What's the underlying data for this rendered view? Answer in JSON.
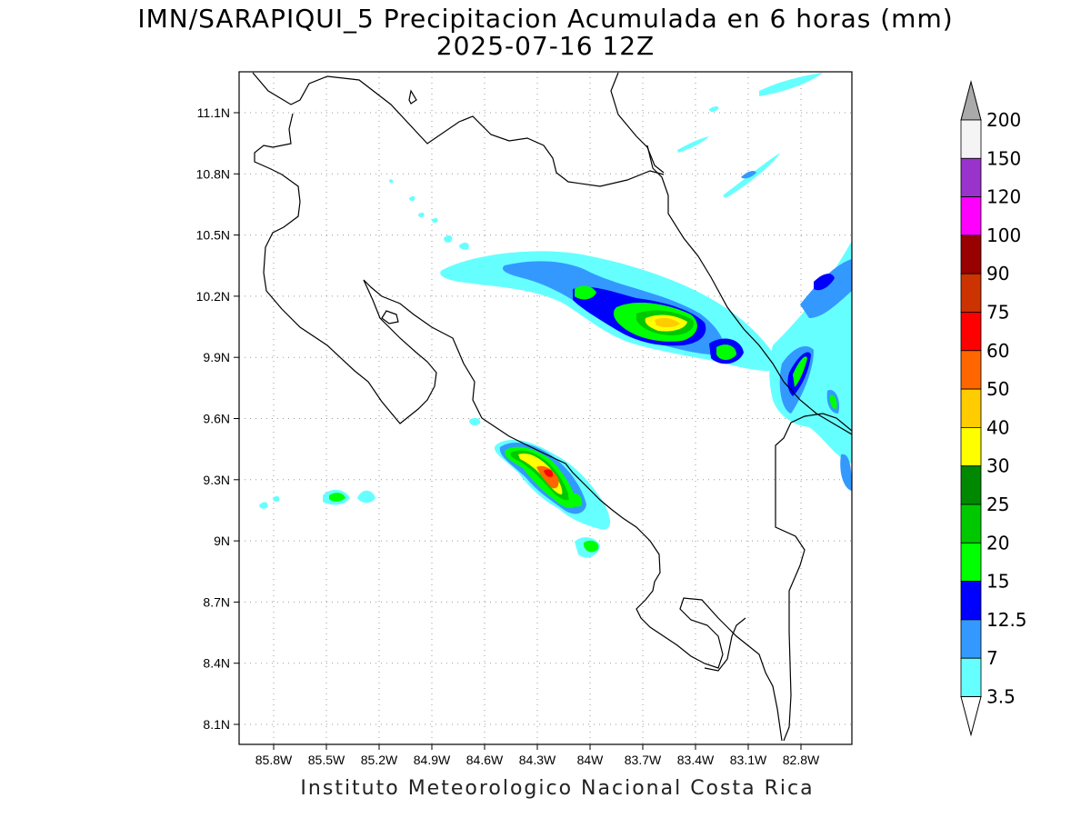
{
  "title": {
    "line1": "IMN/SARAPIQUI_5 Precipitacion Acumulada en 6 horas (mm)",
    "line2": "2025-07-16 12Z"
  },
  "credit": "Instituto Meteorologico Nacional Costa Rica",
  "axes": {
    "x_ticks": [
      "85.8W",
      "85.5W",
      "85.2W",
      "84.9W",
      "84.6W",
      "84.3W",
      "84W",
      "83.7W",
      "83.4W",
      "83.1W",
      "82.8W"
    ],
    "y_ticks": [
      "11.1N",
      "10.8N",
      "10.5N",
      "10.2N",
      "9.9N",
      "9.6N",
      "9.3N",
      "9N",
      "8.7N",
      "8.4N",
      "8.1N"
    ]
  },
  "colorbar": {
    "labels": [
      "200",
      "150",
      "120",
      "100",
      "90",
      "75",
      "60",
      "50",
      "40",
      "30",
      "25",
      "20",
      "15",
      "12.5",
      "7",
      "3.5"
    ],
    "colors": [
      "#f4f4f4",
      "#9933cc",
      "#ff00ff",
      "#990000",
      "#cc3300",
      "#ff0000",
      "#ff6600",
      "#ffcc00",
      "#ffff00",
      "#008800",
      "#00c800",
      "#00ff00",
      "#0000ff",
      "#3399ff",
      "#66ffff"
    ],
    "over_color": "#aaaaaa",
    "under_color": "#ffffff"
  }
}
